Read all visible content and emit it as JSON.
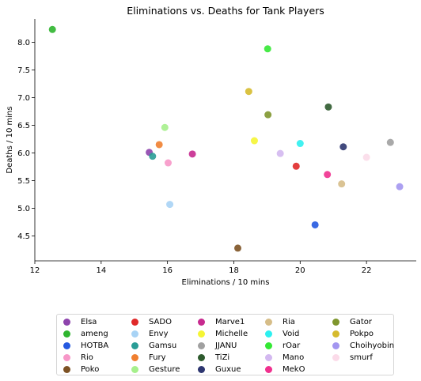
{
  "chart_data": {
    "type": "scatter",
    "title": "Eliminations vs. Deaths for Tank Players",
    "xlabel": "Eliminations / 10 mins",
    "ylabel": "Deaths / 10 mins",
    "xlim": [
      12,
      23.5
    ],
    "ylim": [
      4.05,
      8.42
    ],
    "xticks": [
      12,
      14,
      16,
      18,
      20,
      22
    ],
    "yticks": [
      4.5,
      5.0,
      5.5,
      6.0,
      6.5,
      7.0,
      7.5,
      8.0
    ],
    "xtick_labels": [
      "12",
      "14",
      "16",
      "18",
      "20",
      "22"
    ],
    "ytick_labels": [
      "4.5",
      "5.0",
      "5.5",
      "6.0",
      "6.5",
      "7.0",
      "7.5",
      "8.0"
    ],
    "grid": false,
    "legend_position": "bottom-center",
    "series": [
      {
        "name": "Elsa",
        "color": "#8e44ad",
        "x": 15.45,
        "y": 6.01
      },
      {
        "name": "ameng",
        "color": "#2fb52f",
        "x": 12.53,
        "y": 8.23
      },
      {
        "name": "HOTBA",
        "color": "#2559e0",
        "x": 20.45,
        "y": 4.7
      },
      {
        "name": "Rio",
        "color": "#f797c8",
        "x": 16.02,
        "y": 5.82
      },
      {
        "name": "Poko",
        "color": "#7d5224",
        "x": 18.12,
        "y": 4.28
      },
      {
        "name": "SADO",
        "color": "#e02929",
        "x": 19.88,
        "y": 5.76
      },
      {
        "name": "Envy",
        "color": "#a8d3f5",
        "x": 16.07,
        "y": 5.07
      },
      {
        "name": "Gamsu",
        "color": "#2a9d96",
        "x": 15.55,
        "y": 5.94
      },
      {
        "name": "Fury",
        "color": "#f07f30",
        "x": 15.75,
        "y": 6.15
      },
      {
        "name": "Gesture",
        "color": "#a6f08c",
        "x": 15.92,
        "y": 6.46
      },
      {
        "name": "Marve1",
        "color": "#c72a8f",
        "x": 16.75,
        "y": 5.98
      },
      {
        "name": "Michelle",
        "color": "#f5f534",
        "x": 18.62,
        "y": 6.22
      },
      {
        "name": "JJANU",
        "color": "#a0a0a0",
        "x": 22.72,
        "y": 6.19
      },
      {
        "name": "TiZi",
        "color": "#2d5a2d",
        "x": 20.85,
        "y": 6.83
      },
      {
        "name": "Guxue",
        "color": "#2d3670",
        "x": 21.3,
        "y": 6.11
      },
      {
        "name": "Ria",
        "color": "#d6bd88",
        "x": 21.25,
        "y": 5.44
      },
      {
        "name": "Void",
        "color": "#2df0f0",
        "x": 20.0,
        "y": 6.17
      },
      {
        "name": "rOar",
        "color": "#34e834",
        "x": 19.02,
        "y": 7.88
      },
      {
        "name": "Mano",
        "color": "#d3b8f0",
        "x": 19.4,
        "y": 5.99
      },
      {
        "name": "MekO",
        "color": "#f0308e",
        "x": 20.82,
        "y": 5.61
      },
      {
        "name": "Gator",
        "color": "#7f962e",
        "x": 19.03,
        "y": 6.69
      },
      {
        "name": "Pokpo",
        "color": "#d6bb2e",
        "x": 18.45,
        "y": 7.11
      },
      {
        "name": "Choihyobin",
        "color": "#a396f0",
        "x": 23.0,
        "y": 5.39
      },
      {
        "name": "smurf",
        "color": "#fbdbe9",
        "x": 22.0,
        "y": 5.92
      }
    ]
  }
}
